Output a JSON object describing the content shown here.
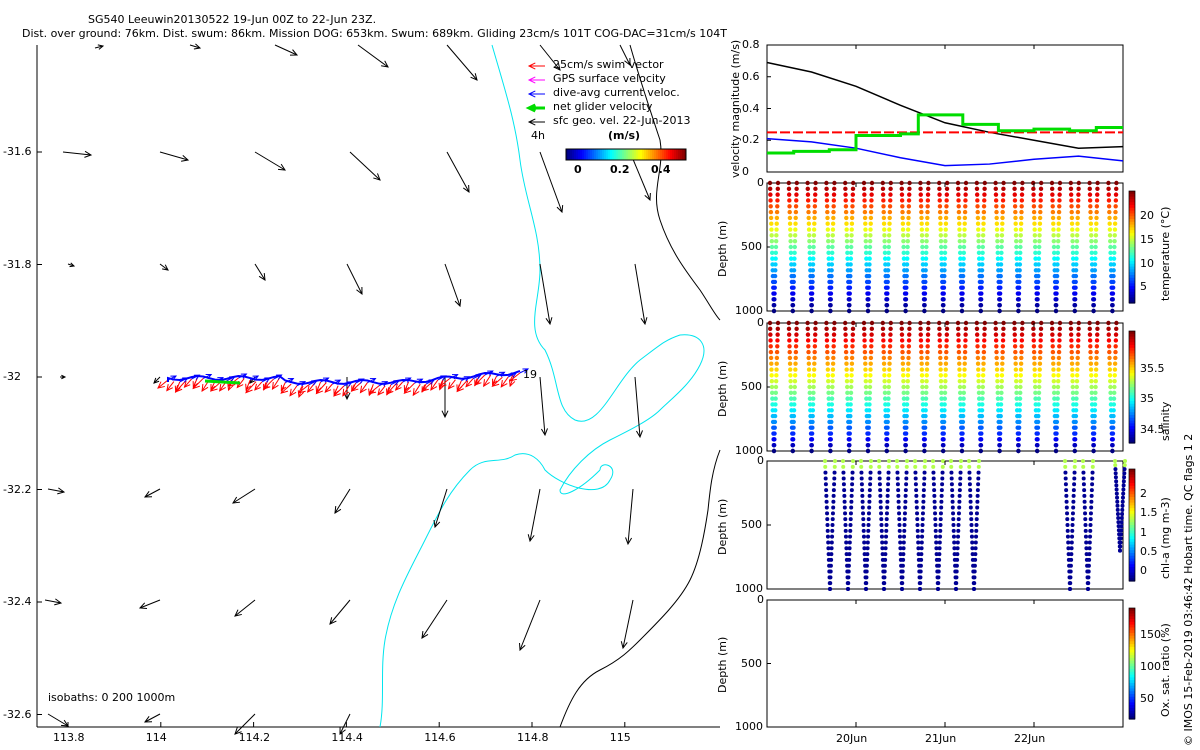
{
  "title": {
    "line1": "SG540 Leeuwin20130522 19-Jun 00Z to 22-Jun 23Z.",
    "line2": "Dist. over ground: 76km. Dist. swum: 86km. Mission DOG: 653km. Swum: 689km. Gliding 23cm/s 101T COG-DAC=31cm/s 104T"
  },
  "legend": {
    "items": [
      {
        "label": "25cm/s swim vector",
        "color": "#ff0000"
      },
      {
        "label": "GPS surface velocity",
        "color": "#ff00ff"
      },
      {
        "label": "dive-avg current veloc.",
        "color": "#0000ff"
      },
      {
        "label": "net glider velocity",
        "color": "#00dd00"
      },
      {
        "label": "sfc geo. vel. 22-Jun-2013",
        "color": "#000000"
      }
    ],
    "scale_label": "4h",
    "colorbar_title": "(m/s)",
    "colorbar_ticks": [
      "0",
      "0.2",
      "0.4"
    ]
  },
  "map": {
    "x_ticks": [
      "113.8",
      "114",
      "114.2",
      "114.4",
      "114.6",
      "114.8",
      "115"
    ],
    "y_ticks": [
      "-31.6",
      "-31.8",
      "-32",
      "-32.2",
      "-32.4",
      "-32.6"
    ],
    "track_end_label": "19",
    "isobaths_label": "isobaths: 0   200  1000m",
    "isobath_color": "#00e5ee"
  },
  "chart_data": [
    {
      "type": "line",
      "title": "",
      "ylabel": "velocity magnitude (m/s)",
      "ylim": [
        0,
        0.8
      ],
      "yticks": [
        "0",
        "0.2",
        "0.4",
        "0.6",
        "0.8"
      ],
      "series": [
        {
          "name": "sfc geo. vel.",
          "color": "#000000",
          "x_days": [
            0,
            0.5,
            1.0,
            1.5,
            2.0,
            2.5,
            3.0,
            3.5,
            4.0
          ],
          "values": [
            0.69,
            0.63,
            0.54,
            0.42,
            0.31,
            0.25,
            0.2,
            0.15,
            0.16
          ]
        },
        {
          "name": "dive-avg current veloc.",
          "color": "#0000ff",
          "x_days": [
            0,
            0.5,
            1.0,
            1.5,
            2.0,
            2.5,
            3.0,
            3.5,
            4.0
          ],
          "values": [
            0.21,
            0.19,
            0.15,
            0.09,
            0.04,
            0.05,
            0.08,
            0.1,
            0.07
          ]
        },
        {
          "name": "25cm/s swim vector",
          "color": "#ff0000",
          "x_days": [
            0,
            4.0
          ],
          "values": [
            0.25,
            0.25
          ]
        },
        {
          "name": "net glider velocity",
          "color": "#00dd00",
          "x_days": [
            0,
            0.3,
            0.7,
            1.0,
            1.5,
            1.7,
            2.2,
            2.6,
            3.0,
            3.4,
            3.7,
            4.0
          ],
          "values": [
            0.12,
            0.13,
            0.14,
            0.23,
            0.24,
            0.36,
            0.3,
            0.26,
            0.27,
            0.26,
            0.28,
            0.28
          ]
        }
      ]
    },
    {
      "type": "scatter",
      "ylabel": "Depth (m)",
      "colorbar_label": "temperature (°C)",
      "ylim": [
        1000,
        0
      ],
      "yticks": [
        "0",
        "500",
        "1000"
      ],
      "colorbar_ticks": [
        "5",
        "10",
        "15",
        "20"
      ],
      "clim": [
        3,
        23
      ],
      "profile_top": 0,
      "profile_bottom": 1000,
      "dive_count": 19
    },
    {
      "type": "scatter",
      "ylabel": "Depth (m)",
      "colorbar_label": "salinity",
      "ylim": [
        1000,
        0
      ],
      "yticks": [
        "0",
        "500",
        "1000"
      ],
      "colorbar_ticks": [
        "34.5",
        "35",
        "35.5"
      ],
      "clim": [
        34.3,
        35.9
      ],
      "dive_count": 19
    },
    {
      "type": "scatter",
      "ylabel": "Depth (m)",
      "colorbar_label": "chl-a (mg m-3)",
      "ylim": [
        1000,
        0
      ],
      "yticks": [
        "0",
        "500",
        "1000"
      ],
      "colorbar_ticks": [
        "0",
        "0.5",
        "1",
        "1.5",
        "2"
      ],
      "clim": [
        0,
        2
      ]
    },
    {
      "type": "scatter",
      "ylabel": "Depth (m)",
      "colorbar_label": "Ox. sat. ratio (%)",
      "ylim": [
        1000,
        0
      ],
      "yticks": [
        "0",
        "500",
        "1000"
      ],
      "colorbar_ticks": [
        "50",
        "100",
        "150"
      ],
      "x_ticks": [
        "20Jun",
        "21Jun",
        "22Jun"
      ]
    }
  ],
  "footer": "© IMOS 15-Feb-2019 03:46:42 Hobart time. QC flags 1  2"
}
